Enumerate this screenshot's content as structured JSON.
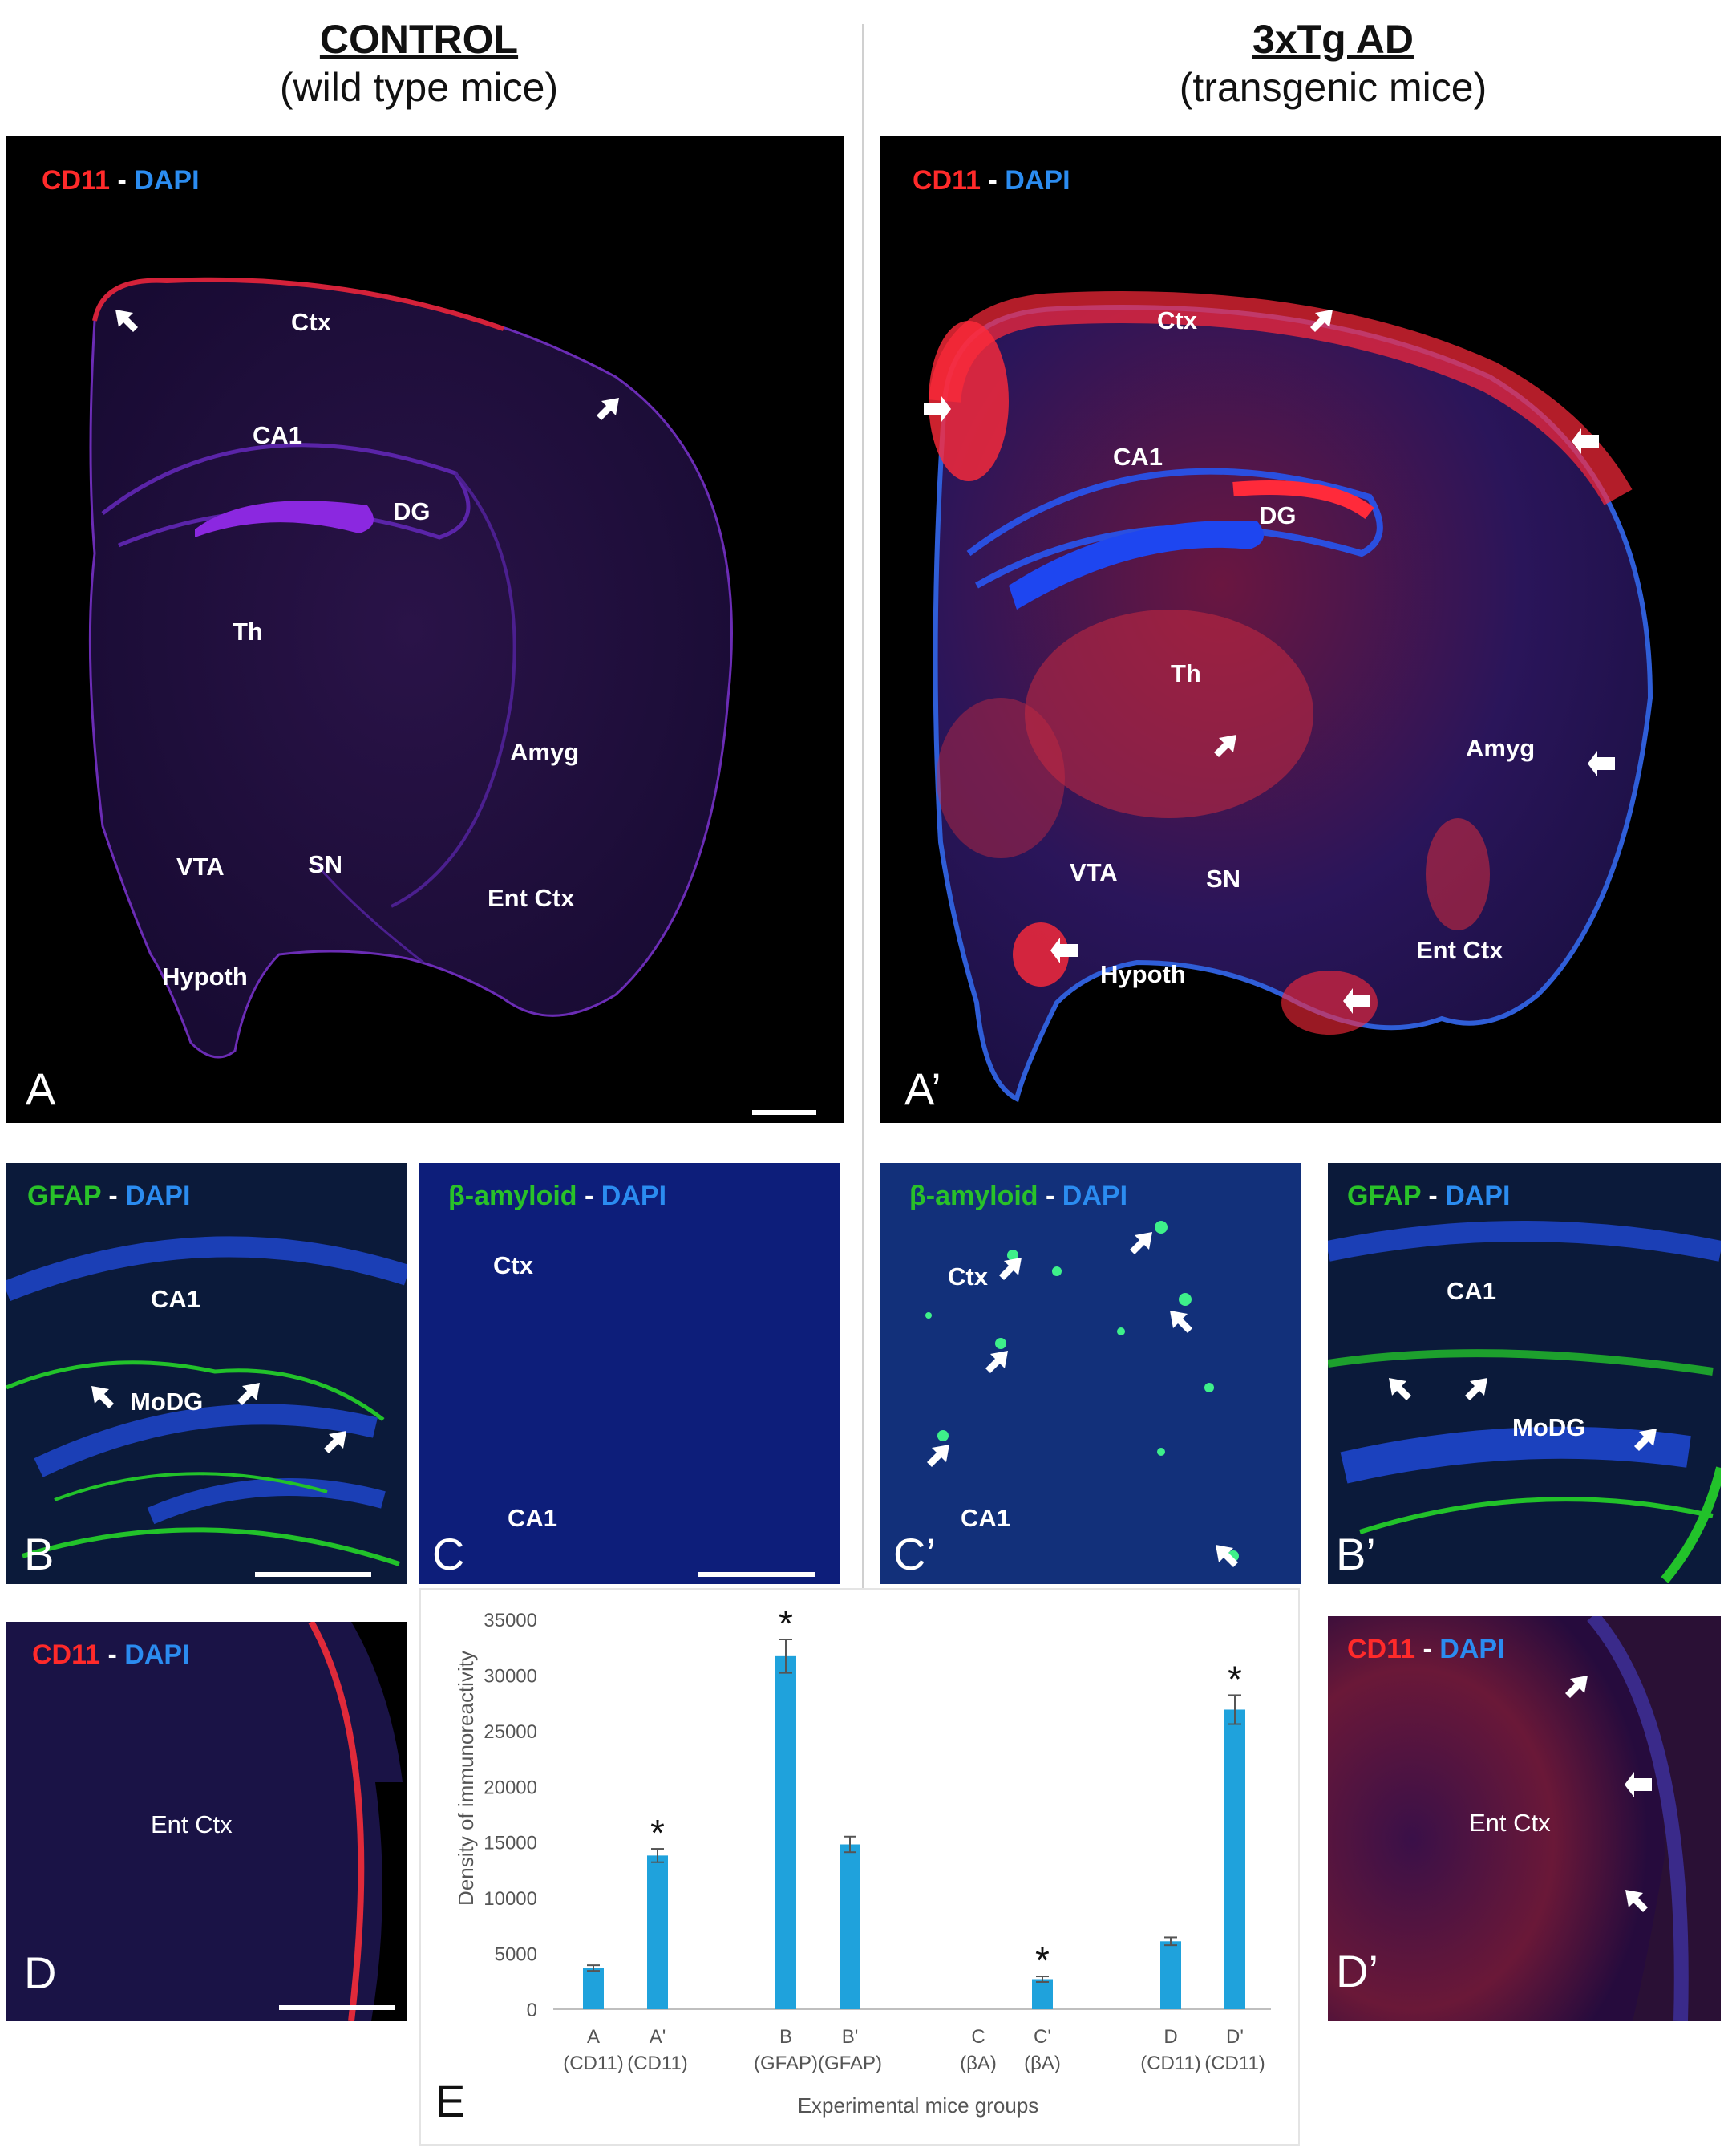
{
  "header": {
    "control_title": "CONTROL",
    "control_sub": "(wild type mice)",
    "ad_title": "3xTg AD",
    "ad_sub": "(transgenic mice)"
  },
  "colors": {
    "red": "#ff2a2a",
    "blue": "#2b8cf0",
    "green": "#29c129",
    "bar": "#1fa2dc"
  },
  "panels": {
    "A": {
      "letter": "A",
      "stain1": "CD11",
      "sep": "-",
      "stain2": "DAPI",
      "regions": {
        "ctx": "Ctx",
        "ca1": "CA1",
        "dg": "DG",
        "th": "Th",
        "amyg": "Amyg",
        "vta": "VTA",
        "sn": "SN",
        "ent": "Ent Ctx",
        "hypoth": "Hypoth"
      }
    },
    "A2": {
      "letter": "A’",
      "stain1": "CD11",
      "sep": "-",
      "stain2": "DAPI",
      "regions": {
        "ctx": "Ctx",
        "ca1": "CA1",
        "dg": "DG",
        "th": "Th",
        "amyg": "Amyg",
        "vta": "VTA",
        "sn": "SN",
        "ent": "Ent Ctx",
        "hypoth": "Hypoth"
      }
    },
    "B": {
      "letter": "B",
      "stain1": "GFAP",
      "sep": "-",
      "stain2": "DAPI",
      "regions": {
        "ca1": "CA1",
        "modg": "MoDG"
      }
    },
    "C": {
      "letter": "C",
      "stain1": "β-amyloid",
      "sep": "-",
      "stain2": "DAPI",
      "regions": {
        "ctx": "Ctx",
        "ca1": "CA1"
      }
    },
    "C2": {
      "letter": "C’",
      "stain1": "β-amyloid",
      "sep": "-",
      "stain2": "DAPI",
      "regions": {
        "ctx": "Ctx",
        "ca1": "CA1"
      }
    },
    "B2": {
      "letter": "B’",
      "stain1": "GFAP",
      "sep": "-",
      "stain2": "DAPI",
      "regions": {
        "ca1": "CA1",
        "modg": "MoDG"
      }
    },
    "D": {
      "letter": "D",
      "stain1": "CD11",
      "sep": "-",
      "stain2": "DAPI",
      "regions": {
        "ent": "Ent Ctx"
      }
    },
    "D2": {
      "letter": "D’",
      "stain1": "CD11",
      "sep": "-",
      "stain2": "DAPI",
      "regions": {
        "ent": "Ent Ctx"
      }
    },
    "E": {
      "letter": "E"
    }
  },
  "chart_data": {
    "type": "bar",
    "ylabel": "Density of immunoreactivity",
    "xlabel": "Experimental mice groups",
    "ylim": [
      0,
      35000
    ],
    "yticks": [
      0,
      5000,
      10000,
      15000,
      20000,
      25000,
      30000,
      35000
    ],
    "ytick_labels": [
      "0",
      "5000",
      "10000",
      "15000",
      "20000",
      "25000",
      "30000",
      "35000"
    ],
    "grid": false,
    "categories": [
      {
        "name": "A",
        "sub": "(CD11)",
        "value": 3700,
        "error": 250,
        "significant": false
      },
      {
        "name": "A'",
        "sub": "(CD11)",
        "value": 13800,
        "error": 600,
        "significant": true
      },
      {
        "name": "B",
        "sub": "(GFAP)",
        "value": 31700,
        "error": 1500,
        "significant": true
      },
      {
        "name": "B'",
        "sub": "(GFAP)",
        "value": 14800,
        "error": 700,
        "significant": false
      },
      {
        "name": "C",
        "sub": "(βA)",
        "value": 0,
        "error": 0,
        "significant": false
      },
      {
        "name": "C'",
        "sub": "(βA)",
        "value": 2700,
        "error": 250,
        "significant": true
      },
      {
        "name": "D",
        "sub": "(CD11)",
        "value": 6100,
        "error": 350,
        "significant": false
      },
      {
        "name": "D'",
        "sub": "(CD11)",
        "value": 26900,
        "error": 1300,
        "significant": true
      }
    ],
    "significance_marker": "*"
  }
}
